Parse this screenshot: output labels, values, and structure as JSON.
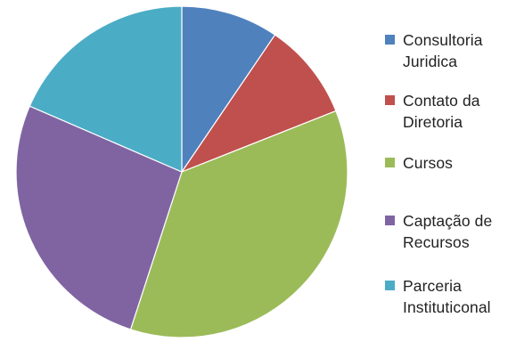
{
  "chart_data": {
    "type": "pie",
    "title": "",
    "start_angle_deg": 0,
    "direction": "clockwise",
    "legend_position": "right",
    "slices": [
      {
        "label": "Consultoria\nJuridica",
        "value": 9.5,
        "color": "#4f81bd"
      },
      {
        "label": "Contato da\nDiretoria",
        "value": 9.5,
        "color": "#c0504d"
      },
      {
        "label": "Cursos",
        "value": 36,
        "color": "#9bbb59"
      },
      {
        "label": "Captação de\nRecursos",
        "value": 26.5,
        "color": "#8064a2"
      },
      {
        "label": "Parceria\nInstituticonal",
        "value": 18.5,
        "color": "#4bacc6"
      }
    ]
  }
}
